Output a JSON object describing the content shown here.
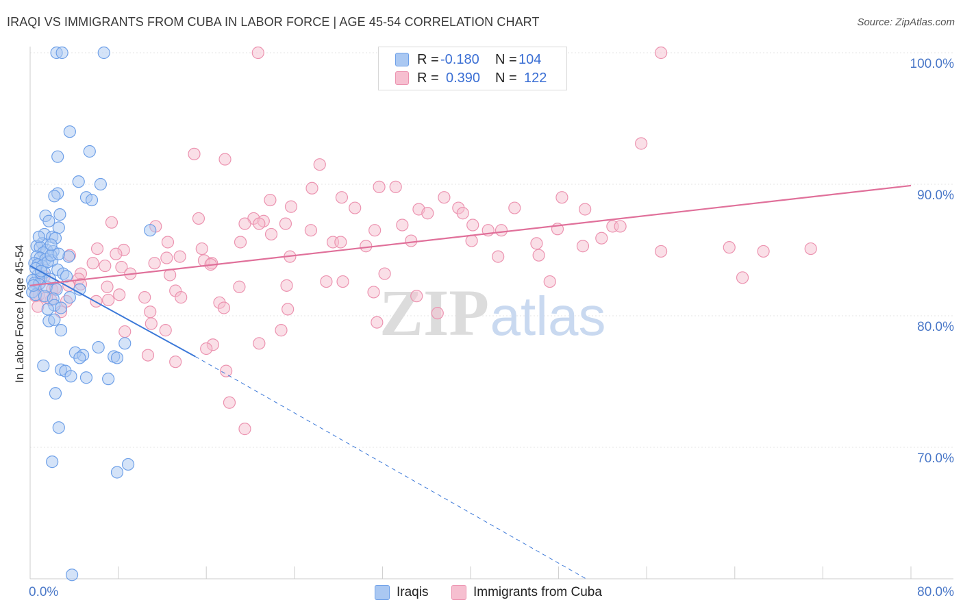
{
  "chart_data": {
    "type": "scatter",
    "title": "IRAQI VS IMMIGRANTS FROM CUBA IN LABOR FORCE | AGE 45-54 CORRELATION CHART",
    "source": "Source: ZipAtlas.com",
    "xlabel": "",
    "ylabel": "In Labor Force | Age 45-54",
    "xlim": [
      0,
      80
    ],
    "ylim": [
      60,
      100
    ],
    "x_tick_labels": [
      "0.0%",
      "80.0%"
    ],
    "y_ticks": [
      70,
      80,
      90,
      100
    ],
    "y_tick_labels": [
      "70.0%",
      "80.0%",
      "90.0%",
      "100.0%"
    ],
    "watermark": {
      "zip": "ZIP",
      "atlas": "atlas"
    },
    "legend_stats": [
      {
        "r_label": "R =",
        "r_value": "-0.180",
        "n_label": "N =",
        "n_value": "104"
      },
      {
        "r_label": "R =",
        "r_value": "0.390",
        "n_label": "N =",
        "n_value": "122"
      }
    ],
    "series": [
      {
        "name": "Iraqis",
        "color": "#6ea0e8",
        "fill": "#aac8f2",
        "line_color": "#3b78d8",
        "trend": {
          "x0": 0,
          "y0": 83.8,
          "x1": 15,
          "y1": 76.9,
          "dash_to_x": 50.5,
          "dash_to_y": 60
        },
        "points": [
          [
            2.4,
            100
          ],
          [
            2.9,
            100
          ],
          [
            6.7,
            100
          ],
          [
            3.6,
            94
          ],
          [
            5.4,
            92.5
          ],
          [
            2.5,
            92.1
          ],
          [
            6.4,
            90
          ],
          [
            4.4,
            90.2
          ],
          [
            2.5,
            89.3
          ],
          [
            5.1,
            89
          ],
          [
            5.6,
            88.8
          ],
          [
            2.2,
            89.1
          ],
          [
            1.4,
            87.6
          ],
          [
            2.7,
            87.7
          ],
          [
            1.7,
            87.2
          ],
          [
            2.6,
            86.7
          ],
          [
            10.9,
            86.5
          ],
          [
            1.3,
            86.2
          ],
          [
            2.0,
            86.0
          ],
          [
            2.3,
            85.9
          ],
          [
            1.1,
            85.5
          ],
          [
            0.6,
            85.3
          ],
          [
            0.9,
            85.2
          ],
          [
            1.5,
            85.0
          ],
          [
            1.2,
            84.8
          ],
          [
            2.1,
            84.9
          ],
          [
            0.6,
            84.5
          ],
          [
            0.9,
            84.4
          ],
          [
            1.4,
            84.3
          ],
          [
            2.0,
            84.2
          ],
          [
            0.4,
            84.0
          ],
          [
            0.7,
            83.9
          ],
          [
            1.1,
            83.8
          ],
          [
            1.6,
            84.1
          ],
          [
            3.5,
            84.5
          ],
          [
            2.5,
            83.5
          ],
          [
            3.0,
            83.2
          ],
          [
            1.3,
            83.3
          ],
          [
            0.7,
            83.1
          ],
          [
            1.0,
            82.9
          ],
          [
            0.2,
            82.7
          ],
          [
            0.4,
            82.5
          ],
          [
            0.8,
            82.4
          ],
          [
            1.5,
            82.2
          ],
          [
            2.4,
            82.0
          ],
          [
            0.2,
            81.8
          ],
          [
            0.5,
            81.6
          ],
          [
            1.3,
            81.5
          ],
          [
            2.1,
            81.3
          ],
          [
            3.6,
            81.4
          ],
          [
            4.5,
            82.0
          ],
          [
            2.2,
            80.8
          ],
          [
            2.8,
            80.6
          ],
          [
            1.6,
            80.5
          ],
          [
            1.7,
            79.6
          ],
          [
            2.2,
            79.7
          ],
          [
            2.8,
            78.9
          ],
          [
            8.6,
            77.9
          ],
          [
            6.2,
            77.6
          ],
          [
            4.1,
            77.2
          ],
          [
            4.8,
            77.0
          ],
          [
            7.6,
            76.9
          ],
          [
            7.9,
            76.8
          ],
          [
            4.5,
            76.8
          ],
          [
            1.2,
            76.2
          ],
          [
            2.8,
            75.9
          ],
          [
            3.2,
            75.8
          ],
          [
            3.7,
            75.4
          ],
          [
            5.1,
            75.3
          ],
          [
            7.1,
            75.2
          ],
          [
            2.3,
            74.1
          ],
          [
            2.6,
            71.5
          ],
          [
            2.0,
            68.9
          ],
          [
            8.9,
            68.7
          ],
          [
            7.9,
            68.1
          ],
          [
            3.8,
            60.3
          ],
          [
            0.5,
            83.6
          ],
          [
            1.8,
            82.8
          ],
          [
            0.3,
            82.3
          ],
          [
            1.9,
            84.6
          ],
          [
            3.3,
            83.0
          ],
          [
            0.8,
            86.0
          ],
          [
            1.9,
            85.4
          ],
          [
            2.6,
            84.7
          ],
          [
            1.0,
            83.4
          ]
        ]
      },
      {
        "name": "Immigrants from Cuba",
        "color": "#ec93b0",
        "fill": "#f6bfd0",
        "line_color": "#e0709a",
        "trend": {
          "x0": 0,
          "y0": 82.3,
          "x1": 80,
          "y1": 89.9
        },
        "points": [
          [
            20.7,
            100
          ],
          [
            57.3,
            100
          ],
          [
            55.5,
            93.1
          ],
          [
            14.9,
            92.3
          ],
          [
            17.7,
            91.9
          ],
          [
            26.3,
            91.5
          ],
          [
            25.6,
            89.7
          ],
          [
            31.7,
            89.8
          ],
          [
            33.2,
            89.8
          ],
          [
            28.3,
            89.0
          ],
          [
            21.8,
            88.8
          ],
          [
            37.6,
            89.0
          ],
          [
            48.3,
            89.0
          ],
          [
            29.5,
            88.2
          ],
          [
            35.3,
            88.1
          ],
          [
            38.9,
            88.2
          ],
          [
            44.0,
            88.2
          ],
          [
            50.4,
            88.1
          ],
          [
            36.1,
            87.8
          ],
          [
            39.3,
            87.8
          ],
          [
            23.7,
            88.3
          ],
          [
            15.3,
            87.4
          ],
          [
            20.3,
            87.4
          ],
          [
            21.2,
            87.2
          ],
          [
            20.8,
            87.0
          ],
          [
            23.2,
            87.0
          ],
          [
            7.4,
            87.1
          ],
          [
            11.4,
            86.8
          ],
          [
            19.5,
            87.0
          ],
          [
            33.8,
            86.9
          ],
          [
            40.2,
            86.9
          ],
          [
            41.6,
            86.5
          ],
          [
            42.8,
            86.5
          ],
          [
            47.9,
            86.6
          ],
          [
            52.9,
            86.8
          ],
          [
            53.6,
            86.8
          ],
          [
            31.3,
            86.5
          ],
          [
            25.5,
            86.5
          ],
          [
            21.9,
            86.2
          ],
          [
            27.5,
            85.6
          ],
          [
            28.2,
            85.6
          ],
          [
            34.6,
            85.7
          ],
          [
            40.1,
            85.7
          ],
          [
            46.0,
            85.5
          ],
          [
            51.9,
            85.9
          ],
          [
            50.2,
            85.3
          ],
          [
            19.1,
            85.6
          ],
          [
            12.5,
            85.6
          ],
          [
            8.5,
            85.0
          ],
          [
            6.1,
            85.1
          ],
          [
            7.8,
            84.7
          ],
          [
            15.6,
            85.1
          ],
          [
            30.5,
            85.3
          ],
          [
            63.5,
            85.2
          ],
          [
            70.9,
            85.1
          ],
          [
            66.6,
            84.9
          ],
          [
            57.3,
            84.9
          ],
          [
            23.6,
            84.5
          ],
          [
            42.5,
            84.5
          ],
          [
            46.2,
            84.6
          ],
          [
            13.6,
            84.5
          ],
          [
            11.3,
            84.0
          ],
          [
            12.4,
            84.4
          ],
          [
            15.8,
            84.2
          ],
          [
            5.7,
            84.0
          ],
          [
            6.8,
            83.8
          ],
          [
            8.3,
            83.7
          ],
          [
            16.5,
            84.0
          ],
          [
            16.4,
            83.9
          ],
          [
            9.1,
            83.2
          ],
          [
            12.7,
            83.1
          ],
          [
            3.6,
            84.6
          ],
          [
            4.6,
            83.2
          ],
          [
            1.3,
            83.0
          ],
          [
            4.4,
            82.8
          ],
          [
            28.4,
            82.6
          ],
          [
            26.9,
            82.6
          ],
          [
            32.2,
            83.2
          ],
          [
            19.0,
            82.2
          ],
          [
            23.3,
            82.3
          ],
          [
            13.2,
            81.9
          ],
          [
            31.2,
            81.8
          ],
          [
            47.2,
            82.6
          ],
          [
            4.6,
            82.4
          ],
          [
            3.5,
            82.3
          ],
          [
            7.0,
            82.2
          ],
          [
            2.0,
            82.0
          ],
          [
            0.8,
            81.6
          ],
          [
            1.9,
            81.2
          ],
          [
            0.5,
            81.5
          ],
          [
            8.1,
            81.6
          ],
          [
            7.1,
            81.2
          ],
          [
            6.0,
            81.1
          ],
          [
            10.4,
            81.4
          ],
          [
            13.7,
            81.4
          ],
          [
            17.2,
            81.0
          ],
          [
            17.6,
            80.6
          ],
          [
            23.4,
            80.5
          ],
          [
            10.9,
            80.3
          ],
          [
            2.8,
            80.3
          ],
          [
            3.3,
            81.1
          ],
          [
            0.7,
            80.7
          ],
          [
            37.0,
            80.2
          ],
          [
            31.5,
            79.5
          ],
          [
            11.0,
            79.4
          ],
          [
            12.3,
            78.9
          ],
          [
            22.8,
            78.9
          ],
          [
            8.6,
            78.8
          ],
          [
            20.8,
            77.9
          ],
          [
            16.6,
            77.8
          ],
          [
            16.0,
            77.5
          ],
          [
            10.7,
            77.0
          ],
          [
            13.2,
            76.5
          ],
          [
            17.8,
            75.8
          ],
          [
            18.1,
            73.4
          ],
          [
            19.5,
            71.4
          ],
          [
            64.7,
            82.9
          ],
          [
            35.1,
            81.5
          ],
          [
            2.3,
            82.1
          ],
          [
            1.5,
            81.4
          ],
          [
            0.9,
            82.5
          ]
        ]
      }
    ]
  }
}
